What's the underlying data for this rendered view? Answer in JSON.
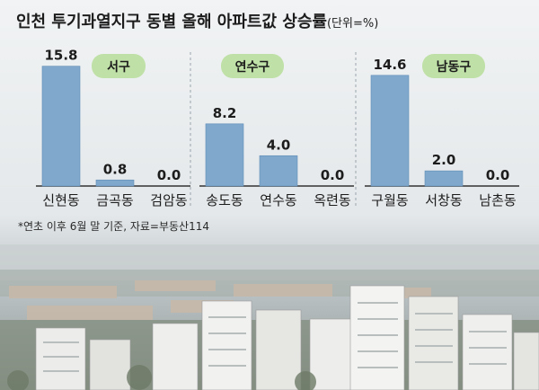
{
  "title": "인천 투기과열지구 동별 올해 아파트값 상승률",
  "unit": "(단위=%)",
  "note": "*연초 이후 6월 말 기준, 자료=부동산114",
  "colors": {
    "bar": "#7fa8cc",
    "bar_edge": "#5f8cb6",
    "badge": "#bfe0a6",
    "divider": "#9aa5ad"
  },
  "chart_data": {
    "type": "bar",
    "title": "인천 투기과열지구 동별 올해 아파트값 상승률",
    "unit": "%",
    "ylim": [
      0,
      16
    ],
    "grid": false,
    "panels": [
      {
        "group": "서구",
        "categories": [
          "신현동",
          "금곡동",
          "검암동"
        ],
        "values": [
          15.8,
          0.8,
          0.0
        ],
        "labels": [
          "15.8",
          "0.8",
          "0.0"
        ]
      },
      {
        "group": "연수구",
        "categories": [
          "송도동",
          "연수동",
          "옥련동"
        ],
        "values": [
          8.2,
          4.0,
          0.0
        ],
        "labels": [
          "8.2",
          "4.0",
          "0.0"
        ]
      },
      {
        "group": "남동구",
        "categories": [
          "구월동",
          "서창동",
          "남촌동"
        ],
        "values": [
          14.6,
          2.0,
          0.0
        ],
        "labels": [
          "14.6",
          "2.0",
          "0.0"
        ]
      }
    ]
  }
}
